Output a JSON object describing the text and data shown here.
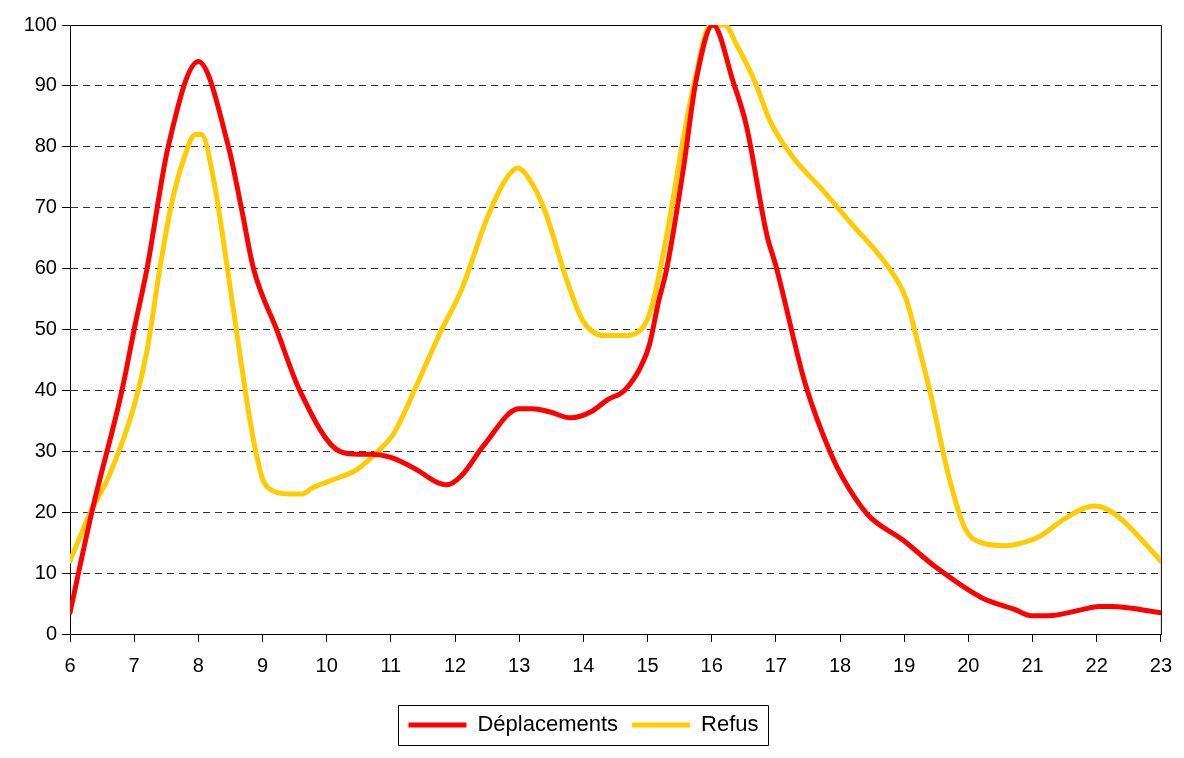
{
  "chart_data": {
    "type": "line",
    "series": [
      {
        "name": "Déplacements",
        "color": "#ff0000",
        "x": [
          6,
          6.34,
          6.81,
          7,
          7.2,
          7.53,
          8,
          8.47,
          8.67,
          8.86,
          9.22,
          9.58,
          10.2,
          10.5,
          10.7,
          11,
          11.4,
          11.7,
          11.87,
          12.1,
          12.45,
          13,
          13.2,
          13.47,
          13.8,
          14.12,
          14.38,
          14.64,
          14.9,
          15.03,
          15.17,
          15.3,
          15.56,
          15.75,
          16.02,
          16.34,
          16.54,
          16.86,
          17,
          17.46,
          17.86,
          18.05,
          18.44,
          18.97,
          19.49,
          20.2,
          20.73,
          20.99,
          21.25,
          21.77,
          22.03,
          22.23,
          23
        ],
        "values": [
          3.5,
          20,
          40,
          50,
          60,
          80,
          94,
          80,
          70,
          60,
          50,
          40,
          30,
          29.5,
          29.5,
          29,
          27,
          25,
          24.5,
          26,
          31,
          37,
          37,
          36.5,
          35.5,
          36.5,
          38.5,
          40,
          44,
          47.5,
          54.5,
          60,
          76.5,
          90.5,
          100,
          90.5,
          83.5,
          65.5,
          60.5,
          41,
          29.5,
          25.5,
          19.5,
          15.5,
          11,
          6,
          4,
          3,
          3,
          4,
          4.5,
          4.5,
          3.5
        ]
      },
      {
        "name": "Refus",
        "color": "#ffcc00",
        "x": [
          6,
          6.32,
          6.61,
          7,
          7.2,
          7.4,
          7.59,
          7.79,
          7.95,
          8.05,
          8.24,
          8.44,
          8.64,
          8.83,
          9,
          9.09,
          9.42,
          9.62,
          9.78,
          10.14,
          10.47,
          10.8,
          11.05,
          11.43,
          11.77,
          12.1,
          12.49,
          12.78,
          12.98,
          13.17,
          13.4,
          13.73,
          13.99,
          14.32,
          14.62,
          14.9,
          15.06,
          15.3,
          15.56,
          15.75,
          15.98,
          16.2,
          16.4,
          16.66,
          16.92,
          17.25,
          17.72,
          18.25,
          18.51,
          18.77,
          19.03,
          19.22,
          19.42,
          19.68,
          19.94,
          20.2,
          20.59,
          20.85,
          21.11,
          21.44,
          21.77,
          21.96,
          22.16,
          22.42,
          23
        ],
        "values": [
          12,
          20,
          26,
          37.5,
          46.5,
          60,
          71,
          78.5,
          82,
          82,
          74.5,
          61,
          46.5,
          33.5,
          25.5,
          24,
          23,
          23,
          24,
          25.5,
          27,
          30,
          33,
          41.5,
          49.5,
          56.5,
          68,
          74.5,
          76.5,
          74.5,
          69.5,
          58.5,
          51.5,
          49,
          49,
          50,
          53.5,
          65.5,
          81.5,
          91.5,
          100,
          100,
          96.5,
          91,
          84,
          78.5,
          73,
          66.5,
          63.5,
          60,
          55,
          47.5,
          39,
          26.5,
          17.5,
          15,
          14.5,
          15,
          16,
          18.5,
          20.5,
          21,
          20.5,
          18.5,
          12
        ]
      }
    ],
    "xlim": [
      6,
      23
    ],
    "xticks": [
      6,
      7,
      8,
      9,
      10,
      11,
      12,
      13,
      14,
      15,
      16,
      17,
      18,
      19,
      20,
      21,
      22,
      23
    ],
    "ylim": [
      0,
      100
    ],
    "yticks": [
      0,
      10,
      20,
      30,
      40,
      50,
      60,
      70,
      80,
      90,
      100
    ],
    "grid": "y",
    "legend": "bottom",
    "marker": "none",
    "line_style": "solid"
  }
}
